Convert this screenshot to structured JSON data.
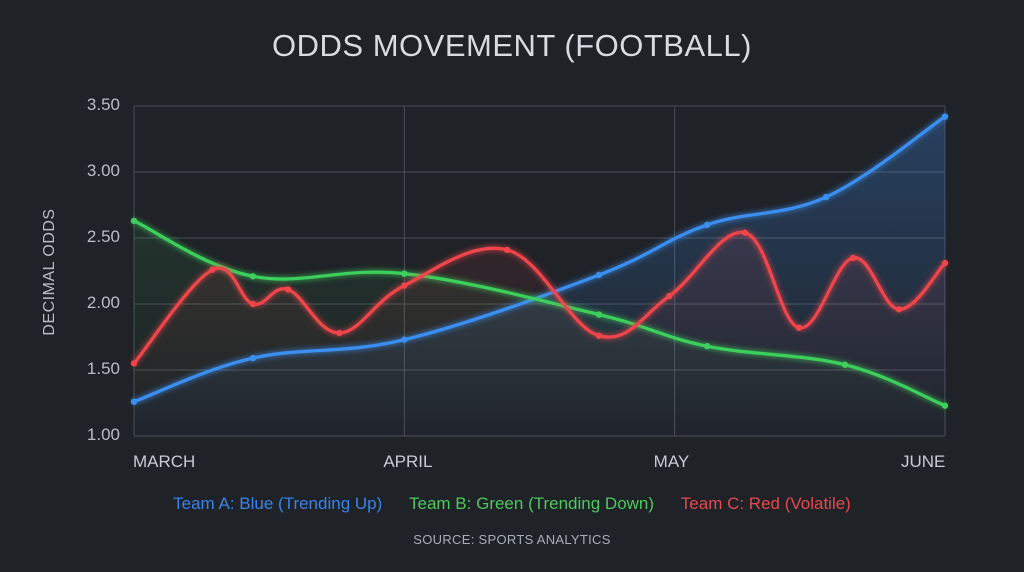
{
  "title": "ODDS MOVEMENT (FOOTBALL)",
  "source": "SOURCE: SPORTS ANALYTICS",
  "colors": {
    "background": "#1f2227",
    "grid": "#4a4e55",
    "team_a": "#3b8ff0",
    "team_b": "#3ecf5c",
    "team_c": "#f0454b"
  },
  "chart_data": {
    "type": "line",
    "title": "ODDS MOVEMENT (FOOTBALL)",
    "xlabel": "",
    "ylabel": "DECIMAL ODDS",
    "ylim": [
      1.0,
      3.5
    ],
    "yticks": [
      "3.50",
      "3.00",
      "2.50",
      "2.00",
      "1.50",
      "1.00"
    ],
    "xticks": [
      "MARCH",
      "APRIL",
      "MAY",
      "JUNE"
    ],
    "x_range": [
      0,
      3
    ],
    "grid": true,
    "legend_position": "bottom",
    "legend": [
      "Team A: Blue (Trending Up)",
      "Team B: Green (Trending Down)",
      "Team C: Red (Volatile)"
    ],
    "series": [
      {
        "name": "Team A: Blue (Trending Up)",
        "color": "#3b8ff0",
        "x": [
          0,
          0.44,
          1.0,
          1.72,
          2.12,
          2.56,
          3.0
        ],
        "y": [
          1.26,
          1.59,
          1.73,
          2.22,
          2.6,
          2.81,
          3.42
        ]
      },
      {
        "name": "Team B: Green (Trending Down)",
        "color": "#3ecf5c",
        "x": [
          0,
          0.44,
          1.0,
          1.72,
          2.12,
          2.63,
          3.0
        ],
        "y": [
          2.63,
          2.21,
          2.23,
          1.92,
          1.68,
          1.54,
          1.23
        ]
      },
      {
        "name": "Team C: Red (Volatile)",
        "color": "#f0454b",
        "x": [
          0,
          0.29,
          0.44,
          0.57,
          0.76,
          1.0,
          1.38,
          1.72,
          1.98,
          2.26,
          2.46,
          2.66,
          2.83,
          3.0
        ],
        "y": [
          1.55,
          2.26,
          2.0,
          2.11,
          1.78,
          2.14,
          2.41,
          1.76,
          2.06,
          2.54,
          1.82,
          2.35,
          1.96,
          2.31
        ]
      }
    ]
  }
}
